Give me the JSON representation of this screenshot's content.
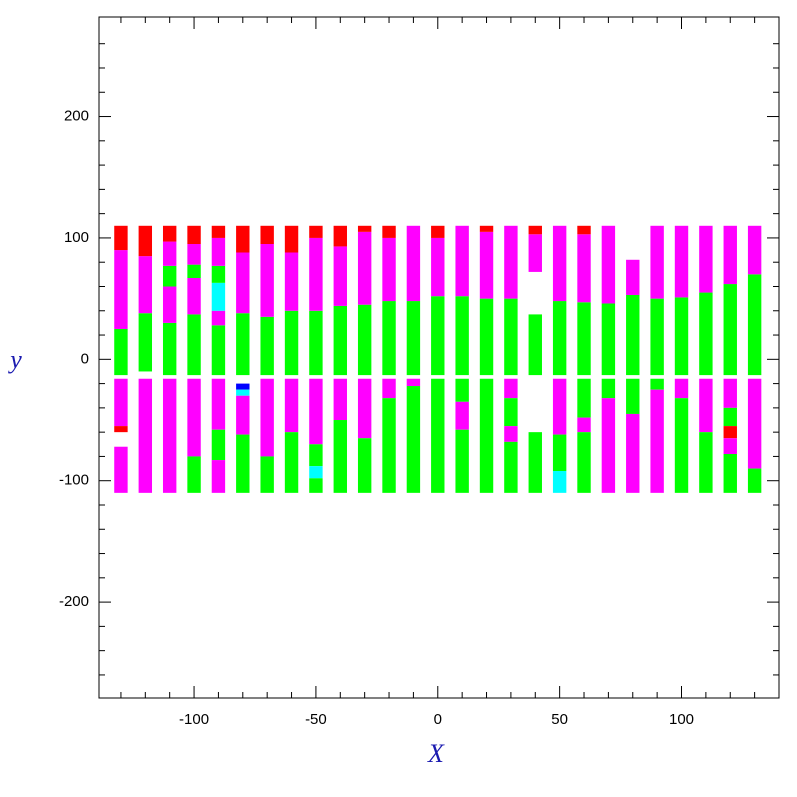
{
  "chart_data": {
    "type": "strips",
    "xlabel": "X",
    "ylabel": "y",
    "xlim": [
      -139,
      140
    ],
    "ylim": [
      -279,
      282
    ],
    "xticks": [
      -100,
      -50,
      0,
      50,
      100
    ],
    "yticks": [
      -200,
      -100,
      0,
      100,
      200
    ],
    "xminorticks": [
      -130,
      -120,
      -110,
      -90,
      -80,
      -70,
      -60,
      -40,
      -30,
      -20,
      -10,
      10,
      20,
      30,
      40,
      60,
      70,
      80,
      90,
      110,
      120,
      130
    ],
    "yminorticks": [
      -260,
      -240,
      -220,
      -180,
      -160,
      -140,
      -120,
      -80,
      -60,
      -40,
      -20,
      20,
      40,
      60,
      80,
      120,
      140,
      160,
      180,
      220,
      240,
      260
    ],
    "columns": [
      {
        "x": -130,
        "segments": [
          [
            -13,
            25,
            "#00ff00"
          ],
          [
            25,
            90,
            "#ff00ff"
          ],
          [
            90,
            110,
            "#ff0000"
          ],
          [
            -16,
            -55,
            "#ff00ff"
          ],
          [
            -55,
            -60,
            "#ff0000"
          ],
          [
            -72,
            -110,
            "#ff00ff"
          ]
        ]
      },
      {
        "x": -120,
        "segments": [
          [
            -10,
            38,
            "#00ff00"
          ],
          [
            38,
            85,
            "#ff00ff"
          ],
          [
            85,
            110,
            "#ff0000"
          ],
          [
            -16,
            -110,
            "#ff00ff"
          ]
        ]
      },
      {
        "x": -110,
        "segments": [
          [
            -13,
            30,
            "#00ff00"
          ],
          [
            30,
            60,
            "#ff00ff"
          ],
          [
            60,
            77,
            "#00ff00"
          ],
          [
            77,
            97,
            "#ff00ff"
          ],
          [
            97,
            110,
            "#ff0000"
          ],
          [
            -16,
            -110,
            "#ff00ff"
          ]
        ]
      },
      {
        "x": -100,
        "segments": [
          [
            -13,
            37,
            "#00ff00"
          ],
          [
            37,
            67,
            "#ff00ff"
          ],
          [
            67,
            78,
            "#00ff00"
          ],
          [
            78,
            95,
            "#ff00ff"
          ],
          [
            95,
            110,
            "#ff0000"
          ],
          [
            -16,
            -80,
            "#ff00ff"
          ],
          [
            -80,
            -110,
            "#00ff00"
          ]
        ]
      },
      {
        "x": -90,
        "segments": [
          [
            -13,
            28,
            "#00ff00"
          ],
          [
            28,
            40,
            "#ff00ff"
          ],
          [
            40,
            63,
            "#00ffff"
          ],
          [
            63,
            77,
            "#00ff00"
          ],
          [
            77,
            100,
            "#ff00ff"
          ],
          [
            100,
            110,
            "#ff0000"
          ],
          [
            -16,
            -58,
            "#ff00ff"
          ],
          [
            -58,
            -83,
            "#00ff00"
          ],
          [
            -83,
            -110,
            "#ff00ff"
          ]
        ]
      },
      {
        "x": -80,
        "segments": [
          [
            -13,
            38,
            "#00ff00"
          ],
          [
            38,
            88,
            "#ff00ff"
          ],
          [
            88,
            110,
            "#ff0000"
          ],
          [
            -20,
            -25,
            "#0000ff"
          ],
          [
            -25,
            -30,
            "#00ffff"
          ],
          [
            -30,
            -62,
            "#ff00ff"
          ],
          [
            -62,
            -110,
            "#00ff00"
          ]
        ]
      },
      {
        "x": -70,
        "segments": [
          [
            -13,
            35,
            "#00ff00"
          ],
          [
            35,
            95,
            "#ff00ff"
          ],
          [
            95,
            110,
            "#ff0000"
          ],
          [
            -16,
            -80,
            "#ff00ff"
          ],
          [
            -80,
            -110,
            "#00ff00"
          ]
        ]
      },
      {
        "x": -60,
        "segments": [
          [
            -13,
            40,
            "#00ff00"
          ],
          [
            40,
            88,
            "#ff00ff"
          ],
          [
            88,
            110,
            "#ff0000"
          ],
          [
            -16,
            -60,
            "#ff00ff"
          ],
          [
            -60,
            -110,
            "#00ff00"
          ]
        ]
      },
      {
        "x": -50,
        "segments": [
          [
            -13,
            40,
            "#00ff00"
          ],
          [
            40,
            100,
            "#ff00ff"
          ],
          [
            100,
            110,
            "#ff0000"
          ],
          [
            -16,
            -70,
            "#ff00ff"
          ],
          [
            -70,
            -88,
            "#00ff00"
          ],
          [
            -88,
            -98,
            "#00ffff"
          ],
          [
            -98,
            -110,
            "#00ff00"
          ]
        ]
      },
      {
        "x": -40,
        "segments": [
          [
            -13,
            44,
            "#00ff00"
          ],
          [
            44,
            93,
            "#ff00ff"
          ],
          [
            93,
            110,
            "#ff0000"
          ],
          [
            -16,
            -50,
            "#ff00ff"
          ],
          [
            -50,
            -110,
            "#00ff00"
          ]
        ]
      },
      {
        "x": -30,
        "segments": [
          [
            -13,
            45,
            "#00ff00"
          ],
          [
            45,
            105,
            "#ff00ff"
          ],
          [
            105,
            110,
            "#ff0000"
          ],
          [
            -16,
            -65,
            "#ff00ff"
          ],
          [
            -65,
            -110,
            "#00ff00"
          ]
        ]
      },
      {
        "x": -20,
        "segments": [
          [
            -13,
            48,
            "#00ff00"
          ],
          [
            48,
            100,
            "#ff00ff"
          ],
          [
            100,
            110,
            "#ff0000"
          ],
          [
            -16,
            -32,
            "#ff00ff"
          ],
          [
            -32,
            -110,
            "#00ff00"
          ]
        ]
      },
      {
        "x": -10,
        "segments": [
          [
            -13,
            48,
            "#00ff00"
          ],
          [
            48,
            110,
            "#ff00ff"
          ],
          [
            -16,
            -22,
            "#ff00ff"
          ],
          [
            -22,
            -110,
            "#00ff00"
          ]
        ]
      },
      {
        "x": 0,
        "segments": [
          [
            -13,
            52,
            "#00ff00"
          ],
          [
            52,
            100,
            "#ff00ff"
          ],
          [
            100,
            110,
            "#ff0000"
          ],
          [
            -16,
            -110,
            "#00ff00"
          ]
        ]
      },
      {
        "x": 10,
        "segments": [
          [
            -13,
            52,
            "#00ff00"
          ],
          [
            52,
            110,
            "#ff00ff"
          ],
          [
            -16,
            -35,
            "#00ff00"
          ],
          [
            -35,
            -58,
            "#ff00ff"
          ],
          [
            -58,
            -110,
            "#00ff00"
          ]
        ]
      },
      {
        "x": 20,
        "segments": [
          [
            -13,
            50,
            "#00ff00"
          ],
          [
            50,
            105,
            "#ff00ff"
          ],
          [
            105,
            110,
            "#ff0000"
          ],
          [
            -16,
            -110,
            "#00ff00"
          ]
        ]
      },
      {
        "x": 30,
        "segments": [
          [
            -13,
            50,
            "#00ff00"
          ],
          [
            50,
            110,
            "#ff00ff"
          ],
          [
            -16,
            -32,
            "#ff00ff"
          ],
          [
            -32,
            -55,
            "#00ff00"
          ],
          [
            -55,
            -68,
            "#ff00ff"
          ],
          [
            -68,
            -110,
            "#00ff00"
          ]
        ]
      },
      {
        "x": 40,
        "segments": [
          [
            -13,
            37,
            "#00ff00"
          ],
          [
            72,
            103,
            "#ff00ff"
          ],
          [
            103,
            110,
            "#ff0000"
          ],
          [
            -60,
            -110,
            "#00ff00"
          ]
        ]
      },
      {
        "x": 50,
        "segments": [
          [
            -13,
            48,
            "#00ff00"
          ],
          [
            48,
            110,
            "#ff00ff"
          ],
          [
            -16,
            -62,
            "#ff00ff"
          ],
          [
            -62,
            -92,
            "#00ff00"
          ],
          [
            -92,
            -110,
            "#00ffff"
          ]
        ]
      },
      {
        "x": 60,
        "segments": [
          [
            -13,
            47,
            "#00ff00"
          ],
          [
            47,
            103,
            "#ff00ff"
          ],
          [
            103,
            110,
            "#ff0000"
          ],
          [
            -16,
            -48,
            "#00ff00"
          ],
          [
            -48,
            -60,
            "#ff00ff"
          ],
          [
            -60,
            -110,
            "#00ff00"
          ]
        ]
      },
      {
        "x": 70,
        "segments": [
          [
            -13,
            46,
            "#00ff00"
          ],
          [
            46,
            110,
            "#ff00ff"
          ],
          [
            -16,
            -32,
            "#00ff00"
          ],
          [
            -32,
            -110,
            "#ff00ff"
          ]
        ]
      },
      {
        "x": 80,
        "segments": [
          [
            -13,
            53,
            "#00ff00"
          ],
          [
            53,
            82,
            "#ff00ff"
          ],
          [
            -16,
            -45,
            "#00ff00"
          ],
          [
            -45,
            -110,
            "#ff00ff"
          ]
        ]
      },
      {
        "x": 90,
        "segments": [
          [
            -13,
            50,
            "#00ff00"
          ],
          [
            50,
            110,
            "#ff00ff"
          ],
          [
            -16,
            -25,
            "#00ff00"
          ],
          [
            -25,
            -110,
            "#ff00ff"
          ]
        ]
      },
      {
        "x": 100,
        "segments": [
          [
            -13,
            51,
            "#00ff00"
          ],
          [
            51,
            110,
            "#ff00ff"
          ],
          [
            -16,
            -32,
            "#ff00ff"
          ],
          [
            -32,
            -110,
            "#00ff00"
          ]
        ]
      },
      {
        "x": 110,
        "segments": [
          [
            -13,
            55,
            "#00ff00"
          ],
          [
            55,
            110,
            "#ff00ff"
          ],
          [
            -16,
            -60,
            "#ff00ff"
          ],
          [
            -60,
            -110,
            "#00ff00"
          ]
        ]
      },
      {
        "x": 120,
        "segments": [
          [
            -13,
            62,
            "#00ff00"
          ],
          [
            62,
            110,
            "#ff00ff"
          ],
          [
            -16,
            -40,
            "#ff00ff"
          ],
          [
            -40,
            -55,
            "#00ff00"
          ],
          [
            -55,
            -65,
            "#ff0000"
          ],
          [
            -65,
            -78,
            "#ff00ff"
          ],
          [
            -78,
            -110,
            "#00ff00"
          ]
        ]
      },
      {
        "x": 130,
        "segments": [
          [
            -13,
            70,
            "#00ff00"
          ],
          [
            70,
            110,
            "#ff00ff"
          ],
          [
            -16,
            -90,
            "#ff00ff"
          ],
          [
            -90,
            -110,
            "#00ff00"
          ]
        ]
      }
    ]
  }
}
